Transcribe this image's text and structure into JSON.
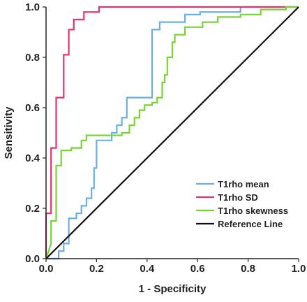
{
  "chart_data": {
    "type": "line",
    "xlabel": "1 - Specificity",
    "ylabel": "Sensitivity",
    "xlim": [
      0,
      1
    ],
    "ylim": [
      0,
      1
    ],
    "xticks": [
      "0.0",
      "0.2",
      "0.4",
      "0.6",
      "0.8",
      "1.0"
    ],
    "yticks": [
      "0.0",
      "0.2",
      "0.4",
      "0.6",
      "0.8",
      "1.0"
    ],
    "grid": false,
    "legend_position": "bottom-right",
    "series": [
      {
        "name": "T1rho mean",
        "color": "#6aaee3",
        "points": [
          [
            0,
            0
          ],
          [
            0.05,
            0
          ],
          [
            0.05,
            0.03
          ],
          [
            0.07,
            0.03
          ],
          [
            0.07,
            0.06
          ],
          [
            0.09,
            0.06
          ],
          [
            0.09,
            0.16
          ],
          [
            0.12,
            0.16
          ],
          [
            0.12,
            0.18
          ],
          [
            0.14,
            0.18
          ],
          [
            0.14,
            0.21
          ],
          [
            0.16,
            0.21
          ],
          [
            0.16,
            0.24
          ],
          [
            0.18,
            0.24
          ],
          [
            0.18,
            0.28
          ],
          [
            0.19,
            0.28
          ],
          [
            0.19,
            0.36
          ],
          [
            0.2,
            0.36
          ],
          [
            0.2,
            0.47
          ],
          [
            0.26,
            0.47
          ],
          [
            0.26,
            0.5
          ],
          [
            0.28,
            0.5
          ],
          [
            0.28,
            0.53
          ],
          [
            0.3,
            0.53
          ],
          [
            0.3,
            0.56
          ],
          [
            0.32,
            0.56
          ],
          [
            0.32,
            0.64
          ],
          [
            0.42,
            0.64
          ],
          [
            0.42,
            0.91
          ],
          [
            0.45,
            0.91
          ],
          [
            0.45,
            0.94
          ],
          [
            0.55,
            0.94
          ],
          [
            0.55,
            0.97
          ],
          [
            0.61,
            0.97
          ],
          [
            0.61,
            0.98
          ],
          [
            0.77,
            0.98
          ],
          [
            0.77,
            1
          ],
          [
            1,
            1
          ]
        ]
      },
      {
        "name": "T1rho SD",
        "color": "#e8336a",
        "points": [
          [
            0,
            0
          ],
          [
            0,
            0.18
          ],
          [
            0.02,
            0.18
          ],
          [
            0.02,
            0.44
          ],
          [
            0.04,
            0.44
          ],
          [
            0.04,
            0.64
          ],
          [
            0.07,
            0.64
          ],
          [
            0.07,
            0.81
          ],
          [
            0.09,
            0.81
          ],
          [
            0.09,
            0.91
          ],
          [
            0.11,
            0.91
          ],
          [
            0.11,
            0.95
          ],
          [
            0.15,
            0.95
          ],
          [
            0.15,
            0.98
          ],
          [
            0.21,
            0.98
          ],
          [
            0.21,
            1
          ],
          [
            1,
            1
          ]
        ]
      },
      {
        "name": "T1rho skewness",
        "color": "#77d436",
        "points": [
          [
            0,
            0
          ],
          [
            0.02,
            0.06
          ],
          [
            0.02,
            0.15
          ],
          [
            0.04,
            0.15
          ],
          [
            0.04,
            0.37
          ],
          [
            0.06,
            0.37
          ],
          [
            0.06,
            0.43
          ],
          [
            0.1,
            0.43
          ],
          [
            0.1,
            0.44
          ],
          [
            0.14,
            0.44
          ],
          [
            0.14,
            0.47
          ],
          [
            0.16,
            0.47
          ],
          [
            0.16,
            0.49
          ],
          [
            0.3,
            0.49
          ],
          [
            0.3,
            0.5
          ],
          [
            0.33,
            0.5
          ],
          [
            0.33,
            0.53
          ],
          [
            0.35,
            0.53
          ],
          [
            0.35,
            0.56
          ],
          [
            0.37,
            0.56
          ],
          [
            0.37,
            0.59
          ],
          [
            0.39,
            0.59
          ],
          [
            0.39,
            0.61
          ],
          [
            0.42,
            0.61
          ],
          [
            0.42,
            0.62
          ],
          [
            0.44,
            0.62
          ],
          [
            0.44,
            0.64
          ],
          [
            0.46,
            0.64
          ],
          [
            0.46,
            0.7
          ],
          [
            0.47,
            0.7
          ],
          [
            0.47,
            0.73
          ],
          [
            0.48,
            0.73
          ],
          [
            0.48,
            0.8
          ],
          [
            0.5,
            0.8
          ],
          [
            0.5,
            0.86
          ],
          [
            0.51,
            0.86
          ],
          [
            0.51,
            0.89
          ],
          [
            0.55,
            0.89
          ],
          [
            0.55,
            0.92
          ],
          [
            0.62,
            0.92
          ],
          [
            0.62,
            0.94
          ],
          [
            0.68,
            0.94
          ],
          [
            0.68,
            0.96
          ],
          [
            0.77,
            0.96
          ],
          [
            0.77,
            0.97
          ],
          [
            0.85,
            0.97
          ],
          [
            0.85,
            0.99
          ],
          [
            0.95,
            0.99
          ],
          [
            0.95,
            1
          ],
          [
            1,
            1
          ]
        ]
      },
      {
        "name": "Reference Line",
        "color": "#111111",
        "points": [
          [
            0,
            0
          ],
          [
            1,
            1
          ]
        ]
      }
    ]
  }
}
